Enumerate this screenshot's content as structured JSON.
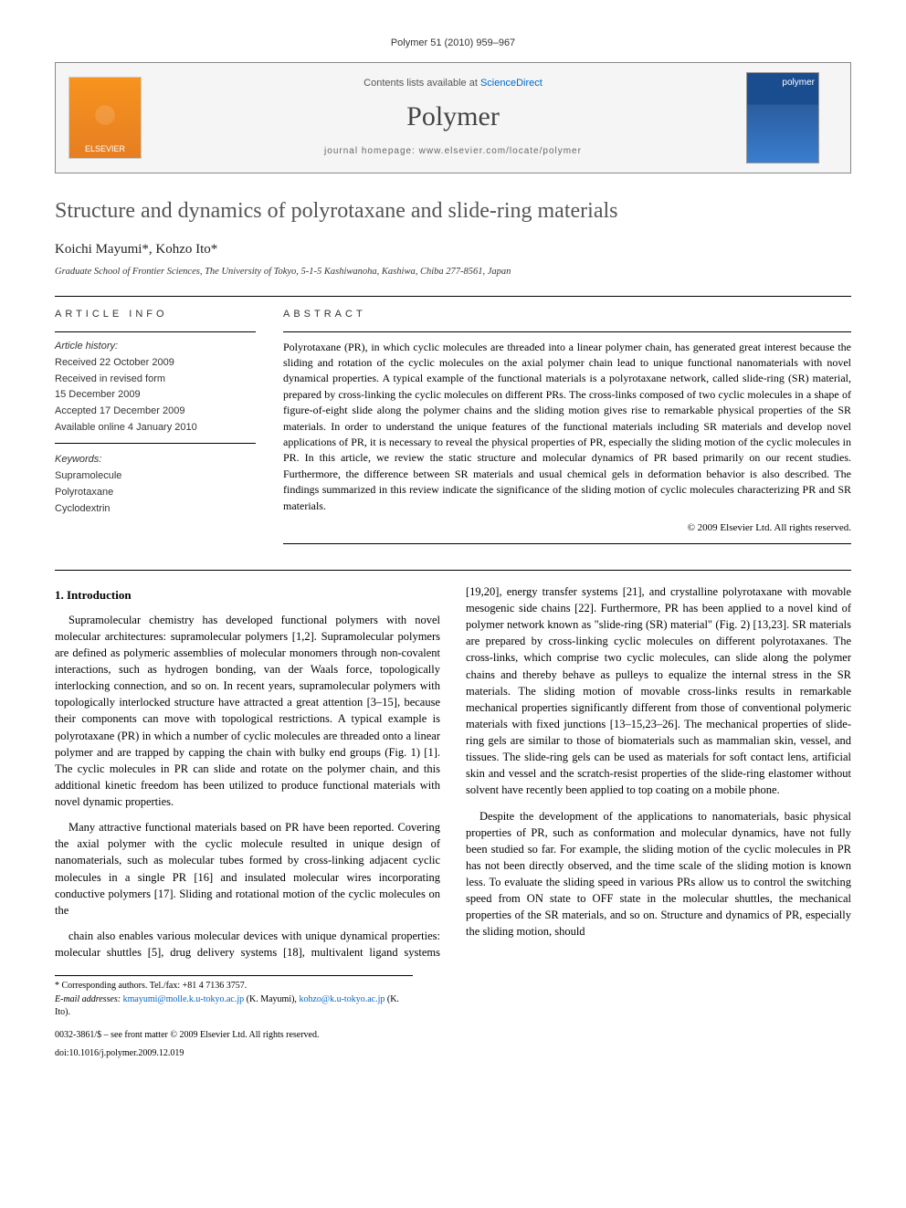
{
  "page_ref": "Polymer 51 (2010) 959–967",
  "header": {
    "contents_prefix": "Contents lists available at ",
    "contents_link": "ScienceDirect",
    "journal": "Polymer",
    "homepage_prefix": "journal homepage: ",
    "homepage_url": "www.elsevier.com/locate/polymer",
    "publisher_logo_text": "ELSEVIER",
    "cover_text": "polymer"
  },
  "article": {
    "title": "Structure and dynamics of polyrotaxane and slide-ring materials",
    "authors": "Koichi Mayumi*, Kohzo Ito*",
    "affiliation": "Graduate School of Frontier Sciences, The University of Tokyo, 5-1-5 Kashiwanoha, Kashiwa, Chiba 277-8561, Japan"
  },
  "info": {
    "heading": "ARTICLE INFO",
    "history_label": "Article history:",
    "received": "Received 22 October 2009",
    "revised1": "Received in revised form",
    "revised2": "15 December 2009",
    "accepted": "Accepted 17 December 2009",
    "online": "Available online 4 January 2010",
    "keywords_label": "Keywords:",
    "kw1": "Supramolecule",
    "kw2": "Polyrotaxane",
    "kw3": "Cyclodextrin"
  },
  "abstract": {
    "heading": "ABSTRACT",
    "text": "Polyrotaxane (PR), in which cyclic molecules are threaded into a linear polymer chain, has generated great interest because the sliding and rotation of the cyclic molecules on the axial polymer chain lead to unique functional nanomaterials with novel dynamical properties. A typical example of the functional materials is a polyrotaxane network, called slide-ring (SR) material, prepared by cross-linking the cyclic molecules on different PRs. The cross-links composed of two cyclic molecules in a shape of figure-of-eight slide along the polymer chains and the sliding motion gives rise to remarkable physical properties of the SR materials. In order to understand the unique features of the functional materials including SR materials and develop novel applications of PR, it is necessary to reveal the physical properties of PR, especially the sliding motion of the cyclic molecules in PR. In this article, we review the static structure and molecular dynamics of PR based primarily on our recent studies. Furthermore, the difference between SR materials and usual chemical gels in deformation behavior is also described. The findings summarized in this review indicate the significance of the sliding motion of cyclic molecules characterizing PR and SR materials.",
    "copyright": "© 2009 Elsevier Ltd. All rights reserved."
  },
  "body": {
    "section1_title": "1. Introduction",
    "p1": "Supramolecular chemistry has developed functional polymers with novel molecular architectures: supramolecular polymers [1,2]. Supramolecular polymers are defined as polymeric assemblies of molecular monomers through non-covalent interactions, such as hydrogen bonding, van der Waals force, topologically interlocking connection, and so on. In recent years, supramolecular polymers with topologically interlocked structure have attracted a great attention [3–15], because their components can move with topological restrictions. A typical example is polyrotaxane (PR) in which a number of cyclic molecules are threaded onto a linear polymer and are trapped by capping the chain with bulky end groups (Fig. 1) [1]. The cyclic molecules in PR can slide and rotate on the polymer chain, and this additional kinetic freedom has been utilized to produce functional materials with novel dynamic properties.",
    "p2": "Many attractive functional materials based on PR have been reported. Covering the axial polymer with the cyclic molecule resulted in unique design of nanomaterials, such as molecular tubes formed by cross-linking adjacent cyclic molecules in a single PR [16] and insulated molecular wires incorporating conductive polymers [17]. Sliding and rotational motion of the cyclic molecules on the",
    "p3": "chain also enables various molecular devices with unique dynamical properties: molecular shuttles [5], drug delivery systems [18], multivalent ligand systems [19,20], energy transfer systems [21], and crystalline polyrotaxane with movable mesogenic side chains [22]. Furthermore, PR has been applied to a novel kind of polymer network known as \"slide-ring (SR) material\" (Fig. 2) [13,23]. SR materials are prepared by cross-linking cyclic molecules on different polyrotaxanes. The cross-links, which comprise two cyclic molecules, can slide along the polymer chains and thereby behave as pulleys to equalize the internal stress in the SR materials. The sliding motion of movable cross-links results in remarkable mechanical properties significantly different from those of conventional polymeric materials with fixed junctions [13–15,23–26]. The mechanical properties of slide-ring gels are similar to those of biomaterials such as mammalian skin, vessel, and tissues. The slide-ring gels can be used as materials for soft contact lens, artificial skin and vessel and the scratch-resist properties of the slide-ring elastomer without solvent have recently been applied to top coating on a mobile phone.",
    "p4": "Despite the development of the applications to nanomaterials, basic physical properties of PR, such as conformation and molecular dynamics, have not fully been studied so far. For example, the sliding motion of the cyclic molecules in PR has not been directly observed, and the time scale of the sliding motion is known less. To evaluate the sliding speed in various PRs allow us to control the switching speed from ON state to OFF state in the molecular shuttles, the mechanical properties of the SR materials, and so on. Structure and dynamics of PR, especially the sliding motion, should"
  },
  "footer": {
    "corr": "* Corresponding authors. Tel./fax: +81 4 7136 3757.",
    "emails_label": "E-mail addresses: ",
    "email1": "kmayumi@molle.k.u-tokyo.ac.jp",
    "email1_who": " (K. Mayumi), ",
    "email2": "kohzo@k.u-tokyo.ac.jp",
    "email2_who": " (K. Ito).",
    "issn_line": "0032-3861/$ – see front matter © 2009 Elsevier Ltd. All rights reserved.",
    "doi": "doi:10.1016/j.polymer.2009.12.019"
  },
  "colors": {
    "link": "#0066cc",
    "title_gray": "#555555",
    "rule": "#000000",
    "header_bg": "#f5f5f5"
  }
}
